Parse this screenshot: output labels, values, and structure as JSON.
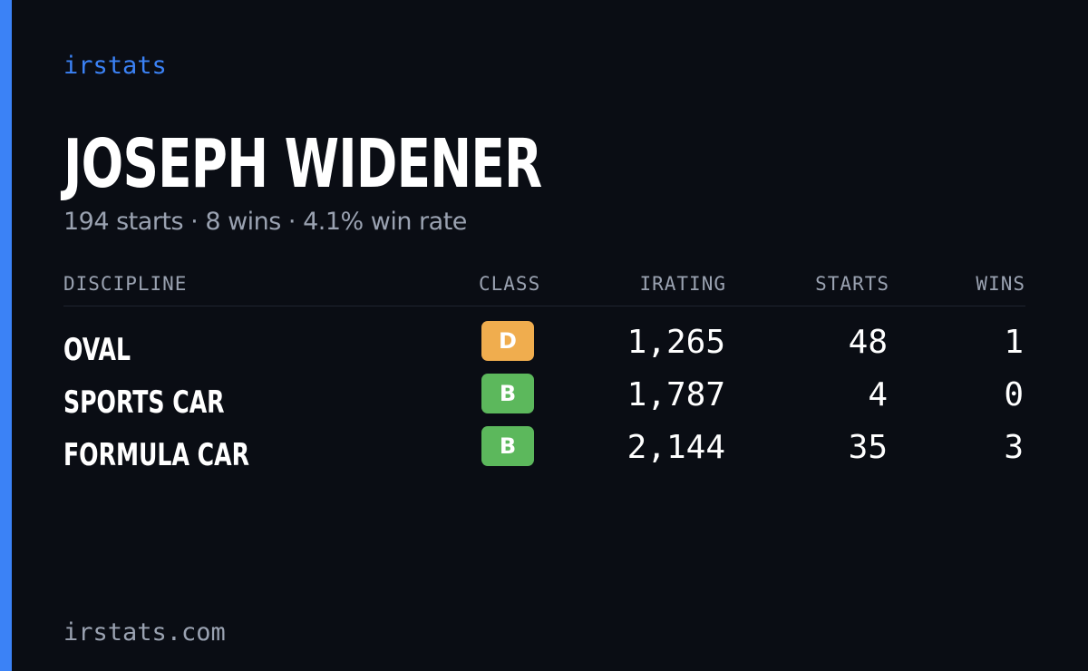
{
  "brand": "irstats",
  "player": {
    "name": "JOSEPH WIDENER",
    "summary": "194 starts · 8 wins · 4.1% win rate"
  },
  "table": {
    "headers": {
      "discipline": "DISCIPLINE",
      "class": "CLASS",
      "irating": "IRATING",
      "starts": "STARTS",
      "wins": "WINS"
    },
    "rows": [
      {
        "discipline": "OVAL",
        "class": "D",
        "class_color": "#f0ad4e",
        "irating": "1,265",
        "starts": "48",
        "wins": "1"
      },
      {
        "discipline": "SPORTS CAR",
        "class": "B",
        "class_color": "#5cb85c",
        "irating": "1,787",
        "starts": "4",
        "wins": "0"
      },
      {
        "discipline": "FORMULA CAR",
        "class": "B",
        "class_color": "#5cb85c",
        "irating": "2,144",
        "starts": "35",
        "wins": "3"
      }
    ]
  },
  "footer": "irstats.com",
  "colors": {
    "background": "#0a0d14",
    "accent": "#3b82f6",
    "muted_text": "#9aa2b1"
  }
}
